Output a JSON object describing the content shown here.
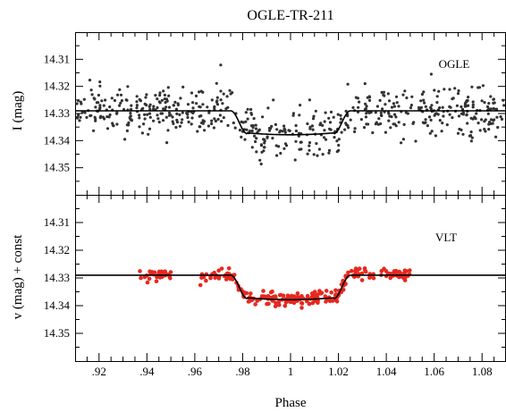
{
  "chart_data": {
    "title": "OGLE-TR-211",
    "type": "scatter",
    "xlabel": "Phase",
    "xlim": [
      0.91,
      1.09
    ],
    "xticks": [
      0.92,
      0.94,
      0.96,
      0.98,
      1.0,
      1.02,
      1.04,
      1.06,
      1.08
    ],
    "xtick_labels": [
      ".92",
      ".94",
      ".96",
      ".98",
      "1",
      "1.02",
      "1.04",
      "1.06",
      "1.08"
    ],
    "panels": [
      {
        "label": "OGLE",
        "ylabel": "I (mag)",
        "ylim": [
          14.3,
          14.36
        ],
        "y_inverted": true,
        "yticks": [
          14.31,
          14.32,
          14.33,
          14.34,
          14.35
        ],
        "ytick_labels": [
          "14.31",
          "14.32",
          "14.33",
          "14.34",
          "14.35"
        ],
        "point_color": "#333333",
        "model": {
          "baseline": 14.329,
          "depth": 0.0085,
          "t1": 0.975,
          "t2": 0.982,
          "t3": 1.018,
          "t4": 1.025
        },
        "series": [
          {
            "phase_range": [
              0.91,
              1.09
            ],
            "count": 620,
            "scatter": 0.0045
          }
        ]
      },
      {
        "label": "VLT",
        "ylabel": "v (mag) + const",
        "ylim": [
          14.3,
          14.36
        ],
        "y_inverted": true,
        "yticks": [
          14.31,
          14.32,
          14.33,
          14.34,
          14.35
        ],
        "ytick_labels": [
          "14.31",
          "14.32",
          "14.33",
          "14.34",
          "14.35"
        ],
        "point_color": "#e8281e",
        "model": {
          "baseline": 14.329,
          "depth": 0.0085,
          "t1": 0.975,
          "t2": 0.982,
          "t3": 1.018,
          "t4": 1.025
        },
        "series": [
          {
            "segments": [
              {
                "range": [
                  0.9355,
                  0.95
                ],
                "count": 30
              },
              {
                "range": [
                  0.962,
                  0.978
                ],
                "count": 34
              },
              {
                "range": [
                  0.978,
                  1.022
                ],
                "count": 150
              },
              {
                "range": [
                  1.022,
                  1.05
                ],
                "count": 68
              }
            ],
            "scatter": 0.0011
          }
        ]
      }
    ]
  }
}
